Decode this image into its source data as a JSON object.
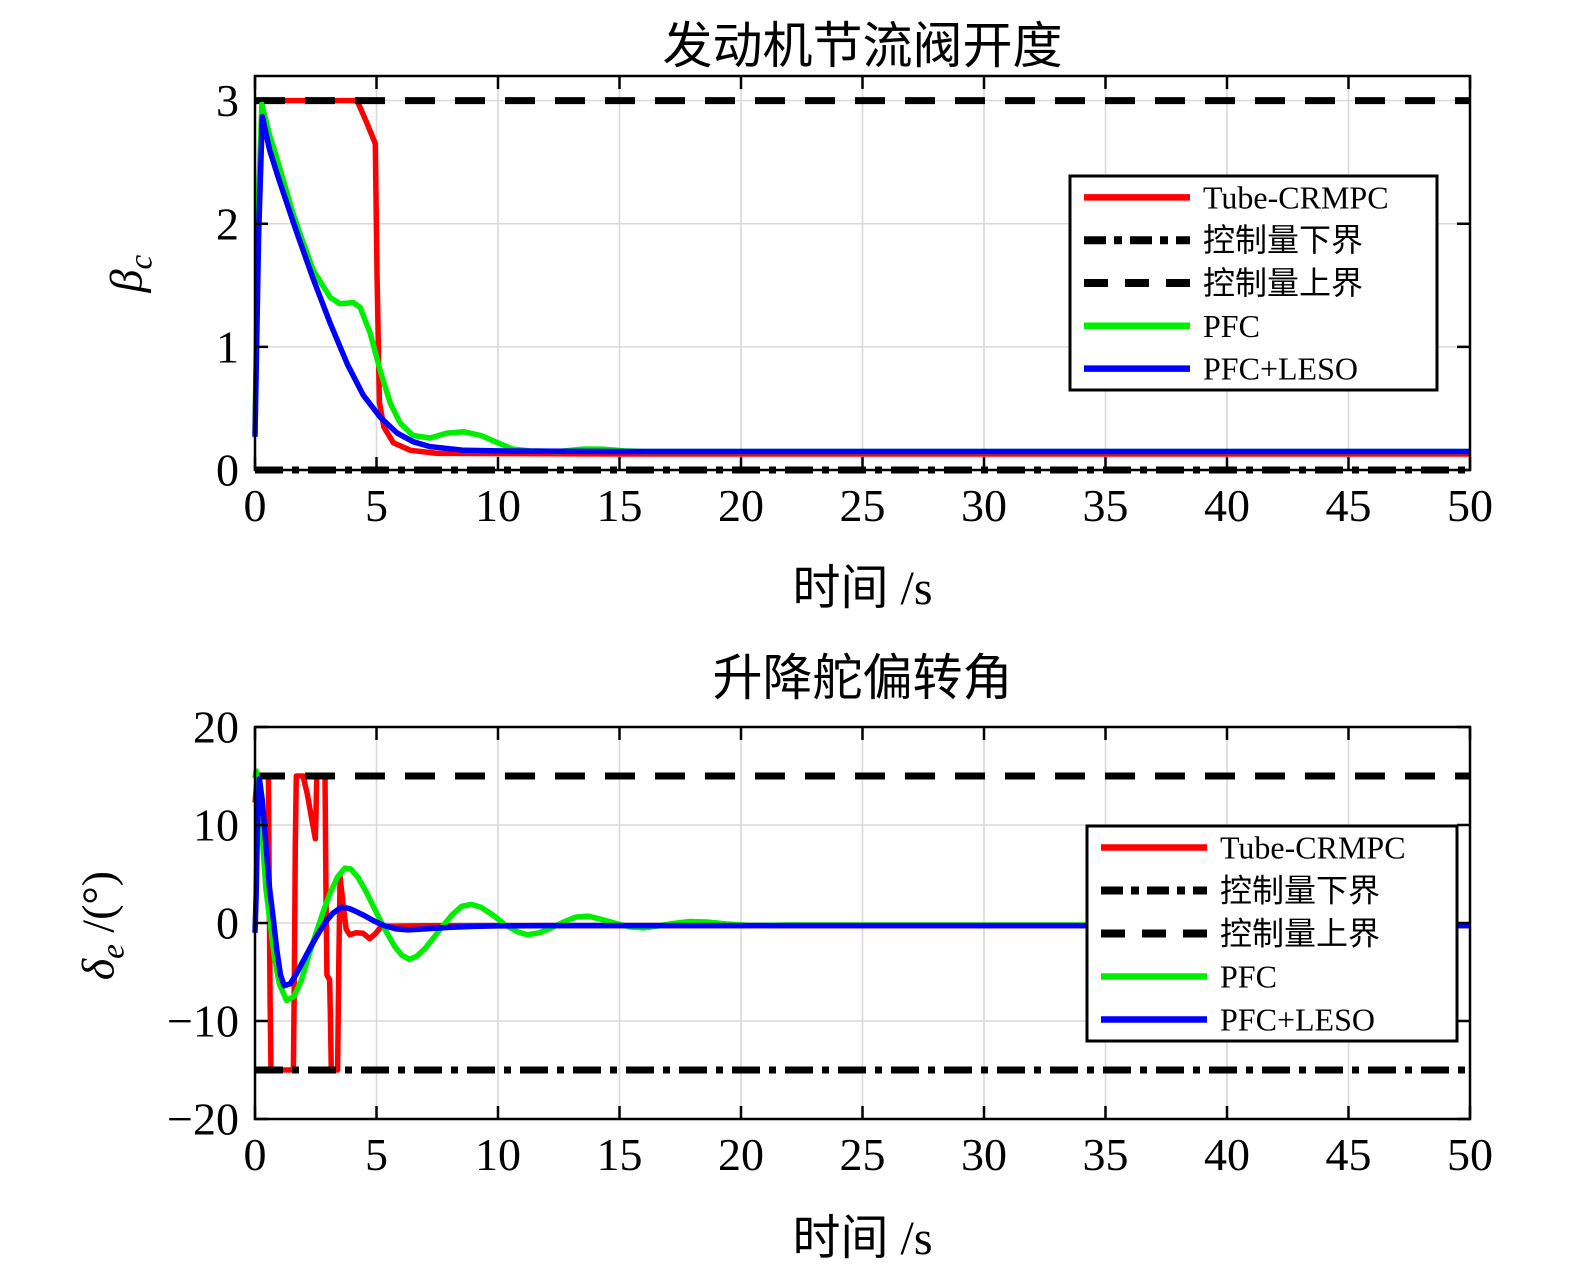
{
  "figure": {
    "background": "#ffffff"
  },
  "chart_data": [
    {
      "type": "line",
      "title": "发动机节流阀开度",
      "xlabel": "时间 /s",
      "ylabel": {
        "main": "β",
        "sub": "c",
        "suffix": ""
      },
      "xlim": [
        0,
        50
      ],
      "ylim": [
        0,
        3.2
      ],
      "xticks": [
        0,
        5,
        10,
        15,
        20,
        25,
        30,
        35,
        40,
        45,
        50
      ],
      "yticks": [
        0,
        1,
        2,
        3
      ],
      "grid": true,
      "legend_position": "inside-upper-right",
      "series": [
        {
          "name": "Tube-CRMPC",
          "color": "#ff0000",
          "style": "solid",
          "width": 5.5,
          "points": [
            [
              0,
              3
            ],
            [
              4.2,
              3
            ],
            [
              4.6,
              2.82
            ],
            [
              4.95,
              2.65
            ],
            [
              5.02,
              1.6
            ],
            [
              5.12,
              0.55
            ],
            [
              5.3,
              0.35
            ],
            [
              5.7,
              0.22
            ],
            [
              6.4,
              0.16
            ],
            [
              7.5,
              0.135
            ],
            [
              15,
              0.13
            ],
            [
              50,
              0.13
            ]
          ]
        },
        {
          "name": "控制量下界",
          "color": "#000000",
          "style": "dashdot",
          "width": 7,
          "points": [
            [
              0,
              0
            ],
            [
              50,
              0
            ]
          ]
        },
        {
          "name": "控制量上界",
          "color": "#000000",
          "style": "dashed",
          "width": 7,
          "points": [
            [
              0,
              3
            ],
            [
              50,
              3
            ]
          ]
        },
        {
          "name": "PFC",
          "color": "#00ee00",
          "style": "solid",
          "width": 5.5,
          "points": [
            [
              0,
              0.3
            ],
            [
              0.15,
              2.2
            ],
            [
              0.28,
              2.97
            ],
            [
              0.6,
              2.72
            ],
            [
              0.9,
              2.53
            ],
            [
              1.57,
              2.08
            ],
            [
              1.85,
              1.92
            ],
            [
              2.4,
              1.62
            ],
            [
              3.1,
              1.4
            ],
            [
              3.5,
              1.35
            ],
            [
              4.05,
              1.36
            ],
            [
              4.33,
              1.32
            ],
            [
              4.74,
              1.11
            ],
            [
              5.15,
              0.81
            ],
            [
              5.57,
              0.54
            ],
            [
              5.98,
              0.38
            ],
            [
              6.5,
              0.28
            ],
            [
              7.2,
              0.26
            ],
            [
              7.9,
              0.3
            ],
            [
              8.6,
              0.31
            ],
            [
              9.3,
              0.28
            ],
            [
              10,
              0.22
            ],
            [
              10.6,
              0.17
            ],
            [
              11.3,
              0.155
            ],
            [
              12.5,
              0.15
            ],
            [
              13.5,
              0.17
            ],
            [
              14.3,
              0.17
            ],
            [
              15.2,
              0.155
            ],
            [
              16,
              0.15
            ],
            [
              50,
              0.15
            ]
          ]
        },
        {
          "name": "PFC+LESO",
          "color": "#0000ff",
          "style": "solid",
          "width": 5.5,
          "points": [
            [
              0,
              0.27
            ],
            [
              0.15,
              1.9
            ],
            [
              0.3,
              2.87
            ],
            [
              0.6,
              2.6
            ],
            [
              1.0,
              2.35
            ],
            [
              1.7,
              1.94
            ],
            [
              2.4,
              1.55
            ],
            [
              3.1,
              1.19
            ],
            [
              3.8,
              0.86
            ],
            [
              4.45,
              0.61
            ],
            [
              5.15,
              0.43
            ],
            [
              5.85,
              0.3
            ],
            [
              6.5,
              0.23
            ],
            [
              7.2,
              0.19
            ],
            [
              8.6,
              0.16
            ],
            [
              10,
              0.155
            ],
            [
              15,
              0.15
            ],
            [
              50,
              0.15
            ]
          ]
        }
      ]
    },
    {
      "type": "line",
      "title": "升降舵偏转角",
      "xlabel": "时间 /s",
      "ylabel": {
        "main": "δ",
        "sub": "e",
        "suffix": " /(°)"
      },
      "xlim": [
        0,
        50
      ],
      "ylim": [
        -20,
        20
      ],
      "xticks": [
        0,
        5,
        10,
        15,
        20,
        25,
        30,
        35,
        40,
        45,
        50
      ],
      "yticks": [
        -20,
        -10,
        0,
        10,
        20
      ],
      "grid": true,
      "legend_position": "inside-middle-right",
      "series": [
        {
          "name": "Tube-CRMPC",
          "color": "#ff0000",
          "style": "solid",
          "width": 5.5,
          "points": [
            [
              0,
              12.3
            ],
            [
              0.1,
              15
            ],
            [
              0.55,
              15
            ],
            [
              0.58,
              5
            ],
            [
              0.62,
              -8
            ],
            [
              0.66,
              -15
            ],
            [
              1.58,
              -15
            ],
            [
              1.62,
              -5
            ],
            [
              1.66,
              8
            ],
            [
              1.7,
              15
            ],
            [
              1.98,
              15
            ],
            [
              2.15,
              13.2
            ],
            [
              2.48,
              8.6
            ],
            [
              2.51,
              11
            ],
            [
              2.54,
              15
            ],
            [
              2.88,
              15
            ],
            [
              2.92,
              3
            ],
            [
              2.96,
              -5.3
            ],
            [
              3.07,
              -5.8
            ],
            [
              3.1,
              -9
            ],
            [
              3.14,
              -15
            ],
            [
              3.4,
              -15
            ],
            [
              3.45,
              -4
            ],
            [
              3.5,
              4.7
            ],
            [
              3.62,
              2.0
            ],
            [
              3.75,
              -0.6
            ],
            [
              3.9,
              -1.2
            ],
            [
              4.15,
              -1.0
            ],
            [
              4.45,
              -1.05
            ],
            [
              4.72,
              -1.6
            ],
            [
              4.95,
              -1.1
            ],
            [
              5.15,
              -0.5
            ],
            [
              5.5,
              -0.33
            ],
            [
              6.5,
              -0.3
            ],
            [
              8,
              -0.27
            ],
            [
              50,
              -0.27
            ]
          ]
        },
        {
          "name": "控制量下界",
          "color": "#000000",
          "style": "dashdot",
          "width": 7,
          "points": [
            [
              0,
              -15
            ],
            [
              50,
              -15
            ]
          ]
        },
        {
          "name": "控制量上界",
          "color": "#000000",
          "style": "dashed",
          "width": 7,
          "points": [
            [
              0,
              15
            ],
            [
              50,
              15
            ]
          ]
        },
        {
          "name": "PFC",
          "color": "#00ee00",
          "style": "solid",
          "width": 5.5,
          "points": [
            [
              0,
              14.8
            ],
            [
              0.05,
              15.5
            ],
            [
              0.25,
              10.5
            ],
            [
              0.45,
              3.5
            ],
            [
              0.62,
              0
            ],
            [
              0.8,
              -3.5
            ],
            [
              1.0,
              -6.2
            ],
            [
              1.3,
              -7.9
            ],
            [
              1.6,
              -7.5
            ],
            [
              1.9,
              -5.9
            ],
            [
              2.2,
              -3.4
            ],
            [
              2.5,
              -1.1
            ],
            [
              2.8,
              1.1
            ],
            [
              3.1,
              3.1
            ],
            [
              3.4,
              4.7
            ],
            [
              3.7,
              5.6
            ],
            [
              3.95,
              5.5
            ],
            [
              4.25,
              4.6
            ],
            [
              4.55,
              3.3
            ],
            [
              4.85,
              1.8
            ],
            [
              5.15,
              0.3
            ],
            [
              5.45,
              -1.1
            ],
            [
              5.75,
              -2.4
            ],
            [
              6.05,
              -3.3
            ],
            [
              6.35,
              -3.7
            ],
            [
              6.65,
              -3.4
            ],
            [
              7.0,
              -2.6
            ],
            [
              7.35,
              -1.5
            ],
            [
              7.7,
              -0.4
            ],
            [
              8.1,
              0.8
            ],
            [
              8.5,
              1.7
            ],
            [
              8.9,
              1.9
            ],
            [
              9.3,
              1.6
            ],
            [
              9.8,
              0.8
            ],
            [
              10.3,
              -0.2
            ],
            [
              10.8,
              -0.9
            ],
            [
              11.2,
              -1.2
            ],
            [
              11.7,
              -1.0
            ],
            [
              12.2,
              -0.5
            ],
            [
              12.7,
              0.1
            ],
            [
              13.2,
              0.6
            ],
            [
              13.7,
              0.7
            ],
            [
              14.2,
              0.4
            ],
            [
              14.8,
              0.0
            ],
            [
              15.4,
              -0.4
            ],
            [
              16.0,
              -0.5
            ],
            [
              16.6,
              -0.3
            ],
            [
              17.2,
              -0.05
            ],
            [
              17.9,
              0.15
            ],
            [
              18.6,
              0.1
            ],
            [
              19.4,
              -0.1
            ],
            [
              20.4,
              -0.25
            ],
            [
              22,
              -0.2
            ],
            [
              50,
              -0.2
            ]
          ]
        },
        {
          "name": "PFC+LESO",
          "color": "#0000ff",
          "style": "solid",
          "width": 5.5,
          "points": [
            [
              0,
              -1.0
            ],
            [
              0.05,
              3
            ],
            [
              0.1,
              9.5
            ],
            [
              0.18,
              14.7
            ],
            [
              0.3,
              12.5
            ],
            [
              0.45,
              8
            ],
            [
              0.6,
              3.5
            ],
            [
              0.75,
              0.5
            ],
            [
              0.9,
              -2.8
            ],
            [
              1.05,
              -5.3
            ],
            [
              1.2,
              -6.4
            ],
            [
              1.45,
              -6.2
            ],
            [
              1.7,
              -5.2
            ],
            [
              2.0,
              -3.8
            ],
            [
              2.3,
              -2.4
            ],
            [
              2.6,
              -1.1
            ],
            [
              2.9,
              0.1
            ],
            [
              3.2,
              1.0
            ],
            [
              3.55,
              1.6
            ],
            [
              3.85,
              1.5
            ],
            [
              4.1,
              1.25
            ],
            [
              4.5,
              0.75
            ],
            [
              4.9,
              0.2
            ],
            [
              5.3,
              -0.25
            ],
            [
              5.8,
              -0.6
            ],
            [
              6.3,
              -0.7
            ],
            [
              7.0,
              -0.6
            ],
            [
              8.0,
              -0.45
            ],
            [
              9.0,
              -0.35
            ],
            [
              10,
              -0.3
            ],
            [
              12,
              -0.27
            ],
            [
              50,
              -0.27
            ]
          ]
        }
      ]
    }
  ]
}
